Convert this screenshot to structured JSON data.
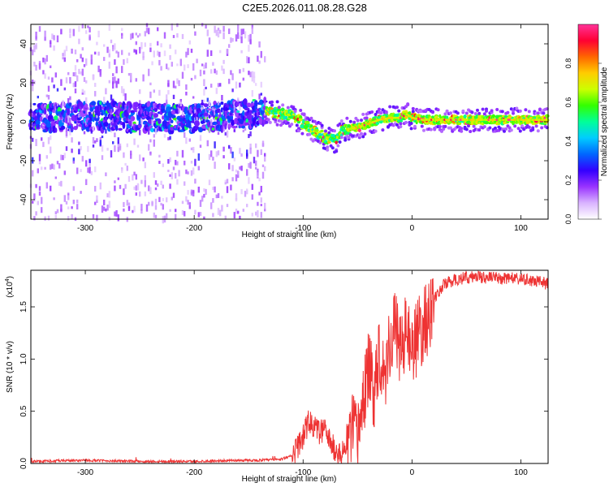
{
  "page": {
    "title": "C2E5.2026.011.08.28.G28"
  },
  "chart_data": [
    {
      "type": "heatmap",
      "xlabel": "Height of straight line (km)",
      "ylabel": "Frequency (Hz)",
      "xlim": [
        -350,
        125
      ],
      "ylim": [
        -50,
        50
      ],
      "xticks": [
        -300,
        -200,
        -100,
        0,
        100
      ],
      "yticks": [
        -40,
        -20,
        0,
        20,
        40
      ],
      "colorbar": {
        "label": "Normalized spectral amplitude",
        "range": [
          0.0,
          1.0
        ],
        "ticks": [
          "0.0",
          "0.2",
          "0.4",
          "0.6",
          "0.8"
        ],
        "colors": [
          "#ffffff",
          "#d9b3ff",
          "#9933ff",
          "#3300ff",
          "#0066ff",
          "#00ccff",
          "#00ff99",
          "#33ff00",
          "#ccff00",
          "#ffcc00",
          "#ff6600",
          "#ff0033",
          "#ff3399"
        ]
      },
      "center_frequency_track": {
        "x": [
          -350,
          -300,
          -250,
          -200,
          -150,
          -130,
          -120,
          -110,
          -100,
          -90,
          -80,
          -70,
          -65,
          -60,
          -50,
          -40,
          -30,
          -20,
          -10,
          -5,
          0,
          10,
          30,
          50,
          80,
          100,
          125
        ],
        "y": [
          2,
          3,
          2,
          2,
          4,
          5,
          4,
          3,
          -1,
          -5,
          -8,
          -10,
          -5,
          -4,
          -3,
          -1,
          1,
          2,
          2,
          4,
          2,
          1,
          1,
          1,
          1,
          1,
          1
        ]
      }
    },
    {
      "type": "line",
      "xlabel": "Height of straight line (km)",
      "ylabel": "SNR (10 * v/v)",
      "ymultiplier": "(x10",
      "ymultiplier_exp": "4",
      "ymultiplier_close": ")",
      "xlim": [
        -350,
        125
      ],
      "ylim": [
        0,
        1.85
      ],
      "xticks": [
        -300,
        -200,
        -100,
        0,
        100
      ],
      "yticks": [
        "0.0",
        "0.5",
        "1.0",
        "1.5"
      ],
      "color": "#ee3333",
      "series": [
        {
          "x": [
            -350,
            -300,
            -250,
            -200,
            -160,
            -140,
            -120,
            -110,
            -100,
            -95,
            -90,
            -85,
            -80,
            -75,
            -70,
            -65,
            -60,
            -55,
            -50,
            -45,
            -40,
            -35,
            -30,
            -25,
            -20,
            -15,
            -10,
            -5,
            0,
            5,
            10,
            15,
            20,
            25,
            30,
            40,
            50,
            60,
            70,
            80,
            90,
            100,
            110,
            125
          ],
          "y": [
            0.02,
            0.03,
            0.02,
            0.02,
            0.03,
            0.03,
            0.04,
            0.08,
            0.25,
            0.4,
            0.35,
            0.3,
            0.32,
            0.2,
            0.12,
            0.08,
            0.15,
            0.3,
            0.25,
            0.6,
            0.9,
            0.7,
            1.1,
            0.85,
            1.2,
            1.3,
            1.1,
            1.25,
            1.15,
            1.2,
            1.3,
            1.4,
            1.55,
            1.65,
            1.72,
            1.76,
            1.78,
            1.79,
            1.78,
            1.77,
            1.78,
            1.76,
            1.75,
            1.72
          ]
        }
      ]
    }
  ]
}
